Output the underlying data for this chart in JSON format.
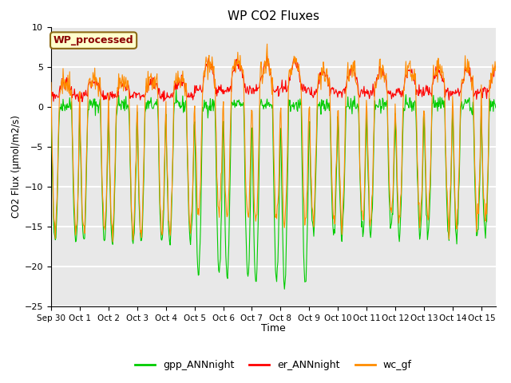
{
  "title": "WP CO2 Fluxes",
  "xlabel": "Time",
  "ylabel": "CO2 Flux (umol/m2/s)",
  "ylim": [
    -25,
    10
  ],
  "yticks": [
    -25,
    -20,
    -15,
    -10,
    -5,
    0,
    5,
    10
  ],
  "x_labels": [
    "Sep 30",
    "Oct 1",
    "Oct 2",
    "Oct 3",
    "Oct 4",
    "Oct 5",
    "Oct 6",
    "Oct 7",
    "Oct 8",
    "Oct 9",
    "Oct 10",
    "Oct 11",
    "Oct 12",
    "Oct 13",
    "Oct 14",
    "Oct 15"
  ],
  "watermark": "WP_processed",
  "watermark_color": "#8B0000",
  "watermark_bg": "#FFFFCC",
  "watermark_edge": "#8B6914",
  "gpp_color": "#00CC00",
  "er_color": "#FF0000",
  "wc_color": "#FF8C00",
  "bg_color": "#E8E8E8",
  "grid_color": "#FFFFFF",
  "legend_labels": [
    "gpp_ANNnight",
    "er_ANNnight",
    "wc_gf"
  ],
  "n_days": 15.5,
  "points_per_day": 48,
  "figsize": [
    6.4,
    4.8
  ],
  "dpi": 100
}
